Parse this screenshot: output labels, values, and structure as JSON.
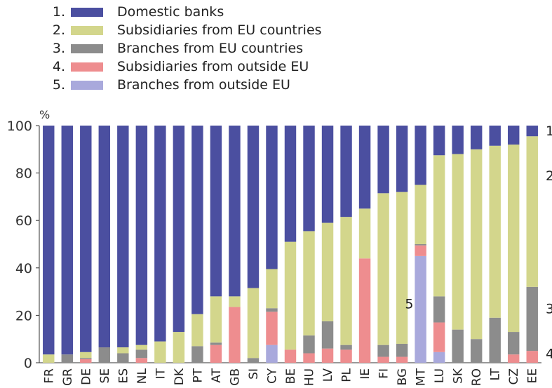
{
  "legend": [
    {
      "num": "1.",
      "label": "Domestic banks",
      "color": "#4b4fa0"
    },
    {
      "num": "2.",
      "label": "Subsidiaries from EU countries",
      "color": "#d3d68c"
    },
    {
      "num": "3.",
      "label": "Branches from EU countries",
      "color": "#8c8c8c"
    },
    {
      "num": "4.",
      "label": "Subsidiaries from outside EU",
      "color": "#ee8d8f"
    },
    {
      "num": "5.",
      "label": "Branches from outside EU",
      "color": "#a9a9dc"
    }
  ],
  "chart_data": {
    "type": "bar",
    "stacked": true,
    "y_unit_label": "%",
    "ylim": [
      0,
      100
    ],
    "yticks": [
      0,
      20,
      40,
      60,
      80,
      100
    ],
    "categories": [
      "FR",
      "GR",
      "DE",
      "SE",
      "ES",
      "NL",
      "IT",
      "DK",
      "PT",
      "AT",
      "GB",
      "SI",
      "CY",
      "BE",
      "HU",
      "LV",
      "PL",
      "IE",
      "FI",
      "BG",
      "MT",
      "LU",
      "SK",
      "RO",
      "LT",
      "CZ",
      "EE"
    ],
    "series": [
      {
        "name": "Branches from outside EU",
        "color": "#a9a9dc",
        "values": [
          0,
          0,
          0,
          0,
          0,
          0,
          0,
          0,
          0,
          0,
          0,
          0,
          7.5,
          0,
          0,
          0,
          0,
          0,
          0,
          0,
          45,
          4.5,
          0,
          0,
          0,
          0,
          0
        ]
      },
      {
        "name": "Subsidiaries from outside EU",
        "color": "#ee8d8f",
        "values": [
          0,
          0,
          1.5,
          0,
          0,
          2,
          0,
          0,
          0,
          7.5,
          23.5,
          0,
          14,
          5.5,
          4,
          6,
          5.5,
          44,
          2.5,
          2.5,
          4.5,
          12.5,
          0,
          0,
          0,
          3.5,
          5
        ]
      },
      {
        "name": "Branches from EU countries",
        "color": "#8c8c8c",
        "values": [
          0,
          3.5,
          0.5,
          6.5,
          4,
          3.5,
          0,
          0,
          7,
          1,
          0,
          2,
          1.5,
          0,
          7.5,
          11.5,
          2,
          0,
          5,
          5.5,
          0.5,
          11,
          14,
          10,
          19,
          9.5,
          27
        ]
      },
      {
        "name": "Subsidiaries from EU countries",
        "color": "#d3d68c",
        "values": [
          3.5,
          0,
          2.5,
          0,
          2.5,
          2,
          9,
          13,
          13.5,
          19.5,
          4.5,
          29.5,
          16.5,
          45.5,
          44,
          41.5,
          54,
          21,
          64,
          64,
          25,
          59.5,
          74,
          80,
          72.5,
          79,
          63.5
        ]
      },
      {
        "name": "Domestic banks",
        "color": "#4b4fa0",
        "values": [
          96.5,
          96.5,
          95.5,
          93.5,
          93.5,
          92.5,
          91,
          87,
          79.5,
          72,
          72,
          68.5,
          60.5,
          49,
          44.5,
          41,
          38.5,
          35,
          28.5,
          28,
          25,
          12.5,
          12,
          10,
          8.5,
          8,
          4.5
        ]
      }
    ],
    "annotations": [
      {
        "text": "5",
        "category": "MT",
        "y": 25
      }
    ],
    "right_labels": [
      {
        "text": "1",
        "y": 98
      },
      {
        "text": "2",
        "y": 79
      },
      {
        "text": "3",
        "y": 23
      },
      {
        "text": "4",
        "y": 4
      }
    ]
  }
}
